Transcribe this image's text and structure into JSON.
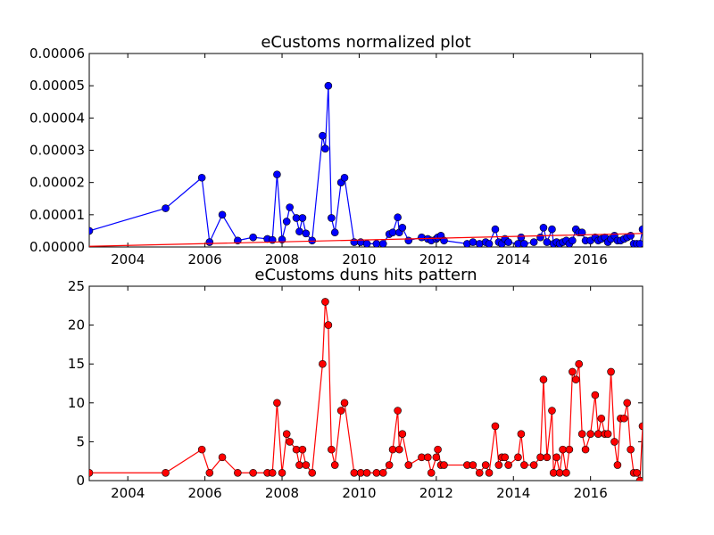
{
  "chart_data": [
    {
      "type": "line",
      "title": "eCustoms normalized plot",
      "xlabel": "",
      "ylabel": "",
      "xlim": [
        2003.0,
        2017.35
      ],
      "ylim": [
        0,
        6e-05
      ],
      "x_ticks": [
        "2004",
        "2006",
        "2008",
        "2010",
        "2012",
        "2014",
        "2016"
      ],
      "x_tick_values": [
        2004,
        2006,
        2008,
        2010,
        2012,
        2014,
        2016
      ],
      "y_ticks": [
        "0.00000",
        "0.00001",
        "0.00002",
        "0.00003",
        "0.00004",
        "0.00005",
        "0.00006"
      ],
      "y_tick_values": [
        0,
        1e-05,
        2e-05,
        3e-05,
        4e-05,
        5e-05,
        6e-05
      ],
      "grid": false,
      "series": [
        {
          "color": "#0000ff",
          "marker": "circle",
          "x": [
            2003.0,
            2004.98,
            2005.92,
            2006.12,
            2006.45,
            2006.85,
            2007.25,
            2007.62,
            2007.75,
            2007.87,
            2008.0,
            2008.12,
            2008.2,
            2008.37,
            2008.45,
            2008.53,
            2008.62,
            2008.78,
            2009.05,
            2009.12,
            2009.2,
            2009.28,
            2009.37,
            2009.53,
            2009.62,
            2009.87,
            2010.04,
            2010.2,
            2010.45,
            2010.62,
            2010.78,
            2010.87,
            2011.0,
            2011.04,
            2011.12,
            2011.28,
            2011.62,
            2011.78,
            2011.87,
            2012.0,
            2012.04,
            2012.12,
            2012.2,
            2012.8,
            2012.95,
            2013.12,
            2013.28,
            2013.37,
            2013.53,
            2013.62,
            2013.7,
            2013.78,
            2013.87,
            2014.12,
            2014.2,
            2014.28,
            2014.53,
            2014.7,
            2014.78,
            2014.87,
            2015.0,
            2015.04,
            2015.12,
            2015.2,
            2015.28,
            2015.37,
            2015.45,
            2015.53,
            2015.62,
            2015.7,
            2015.78,
            2015.87,
            2016.0,
            2016.12,
            2016.2,
            2016.28,
            2016.37,
            2016.45,
            2016.53,
            2016.62,
            2016.7,
            2016.78,
            2016.87,
            2016.95,
            2017.04,
            2017.12,
            2017.2,
            2017.28,
            2017.35
          ],
          "values": [
            5e-06,
            1.2e-05,
            2.15e-05,
            1.5e-06,
            1e-05,
            2e-06,
            3e-06,
            2.5e-06,
            2.2e-06,
            2.25e-05,
            2.3e-06,
            7.9e-06,
            1.23e-05,
            9e-06,
            4.8e-06,
            9e-06,
            4.2e-06,
            2e-06,
            3.45e-05,
            3.05e-05,
            5e-05,
            9e-06,
            4.5e-06,
            2e-05,
            2.15e-05,
            1.5e-06,
            1.5e-06,
            1e-06,
            1e-06,
            1e-06,
            4e-06,
            4.5e-06,
            9.2e-06,
            4.5e-06,
            6e-06,
            2e-06,
            3e-06,
            2.5e-06,
            2e-06,
            2.5e-06,
            3e-06,
            3.5e-06,
            2e-06,
            1e-06,
            1.5e-06,
            1e-06,
            1.5e-06,
            1e-06,
            5.5e-06,
            1.5e-06,
            1e-06,
            2.5e-06,
            1.5e-06,
            1e-06,
            3e-06,
            1e-06,
            1.5e-06,
            3e-06,
            6e-06,
            1.5e-06,
            5.5e-06,
            1e-06,
            1.5e-06,
            1e-06,
            1.5e-06,
            2e-06,
            1e-06,
            2e-06,
            5.5e-06,
            4.5e-06,
            4.5e-06,
            2e-06,
            2e-06,
            3e-06,
            2e-06,
            2.5e-06,
            3e-06,
            1.5e-06,
            2.5e-06,
            3.5e-06,
            2e-06,
            2e-06,
            2.5e-06,
            3e-06,
            3.5e-06,
            1e-06,
            1e-06,
            1e-06,
            5.5e-06
          ]
        },
        {
          "color": "#ff0000",
          "marker": "none",
          "x": [
            2003.0,
            2017.35
          ],
          "values": [
            2e-07,
            4.2e-06
          ]
        }
      ]
    },
    {
      "type": "line",
      "title": "eCustoms duns hits pattern",
      "xlabel": "",
      "ylabel": "",
      "xlim": [
        2003.0,
        2017.35
      ],
      "ylim": [
        0,
        25
      ],
      "x_ticks": [
        "2004",
        "2006",
        "2008",
        "2010",
        "2012",
        "2014",
        "2016"
      ],
      "x_tick_values": [
        2004,
        2006,
        2008,
        2010,
        2012,
        2014,
        2016
      ],
      "y_ticks": [
        "0",
        "5",
        "10",
        "15",
        "20",
        "25"
      ],
      "y_tick_values": [
        0,
        5,
        10,
        15,
        20,
        25
      ],
      "grid": false,
      "series": [
        {
          "color": "#ff0000",
          "marker": "circle",
          "x": [
            2003.0,
            2004.98,
            2005.92,
            2006.12,
            2006.45,
            2006.85,
            2007.25,
            2007.62,
            2007.75,
            2007.87,
            2008.0,
            2008.12,
            2008.2,
            2008.37,
            2008.45,
            2008.53,
            2008.62,
            2008.78,
            2009.05,
            2009.12,
            2009.2,
            2009.28,
            2009.37,
            2009.53,
            2009.62,
            2009.87,
            2010.04,
            2010.2,
            2010.45,
            2010.62,
            2010.78,
            2010.87,
            2011.0,
            2011.04,
            2011.12,
            2011.28,
            2011.62,
            2011.78,
            2011.87,
            2012.0,
            2012.04,
            2012.12,
            2012.2,
            2012.8,
            2012.95,
            2013.12,
            2013.28,
            2013.37,
            2013.53,
            2013.62,
            2013.7,
            2013.78,
            2013.87,
            2014.12,
            2014.2,
            2014.28,
            2014.53,
            2014.7,
            2014.78,
            2014.87,
            2015.0,
            2015.04,
            2015.12,
            2015.2,
            2015.28,
            2015.37,
            2015.45,
            2015.53,
            2015.62,
            2015.7,
            2015.78,
            2015.87,
            2016.0,
            2016.12,
            2016.2,
            2016.28,
            2016.37,
            2016.45,
            2016.53,
            2016.62,
            2016.7,
            2016.78,
            2016.87,
            2016.95,
            2017.04,
            2017.12,
            2017.2,
            2017.28,
            2017.35
          ],
          "values": [
            1,
            1,
            4,
            1,
            3,
            1,
            1,
            1,
            1,
            10,
            1,
            6,
            5,
            4,
            2,
            4,
            2,
            1,
            15,
            23,
            20,
            4,
            2,
            9,
            10,
            1,
            1,
            1,
            1,
            1,
            2,
            4,
            9,
            4,
            6,
            2,
            3,
            3,
            1,
            3,
            4,
            2,
            2,
            2,
            2,
            1,
            2,
            1,
            7,
            2,
            3,
            3,
            2,
            3,
            6,
            2,
            2,
            3,
            13,
            3,
            9,
            1,
            3,
            1,
            4,
            1,
            4,
            14,
            13,
            15,
            6,
            4,
            6,
            11,
            6,
            8,
            6,
            6,
            14,
            5,
            2,
            8,
            8,
            10,
            4,
            1,
            1,
            0,
            7
          ]
        }
      ]
    }
  ]
}
